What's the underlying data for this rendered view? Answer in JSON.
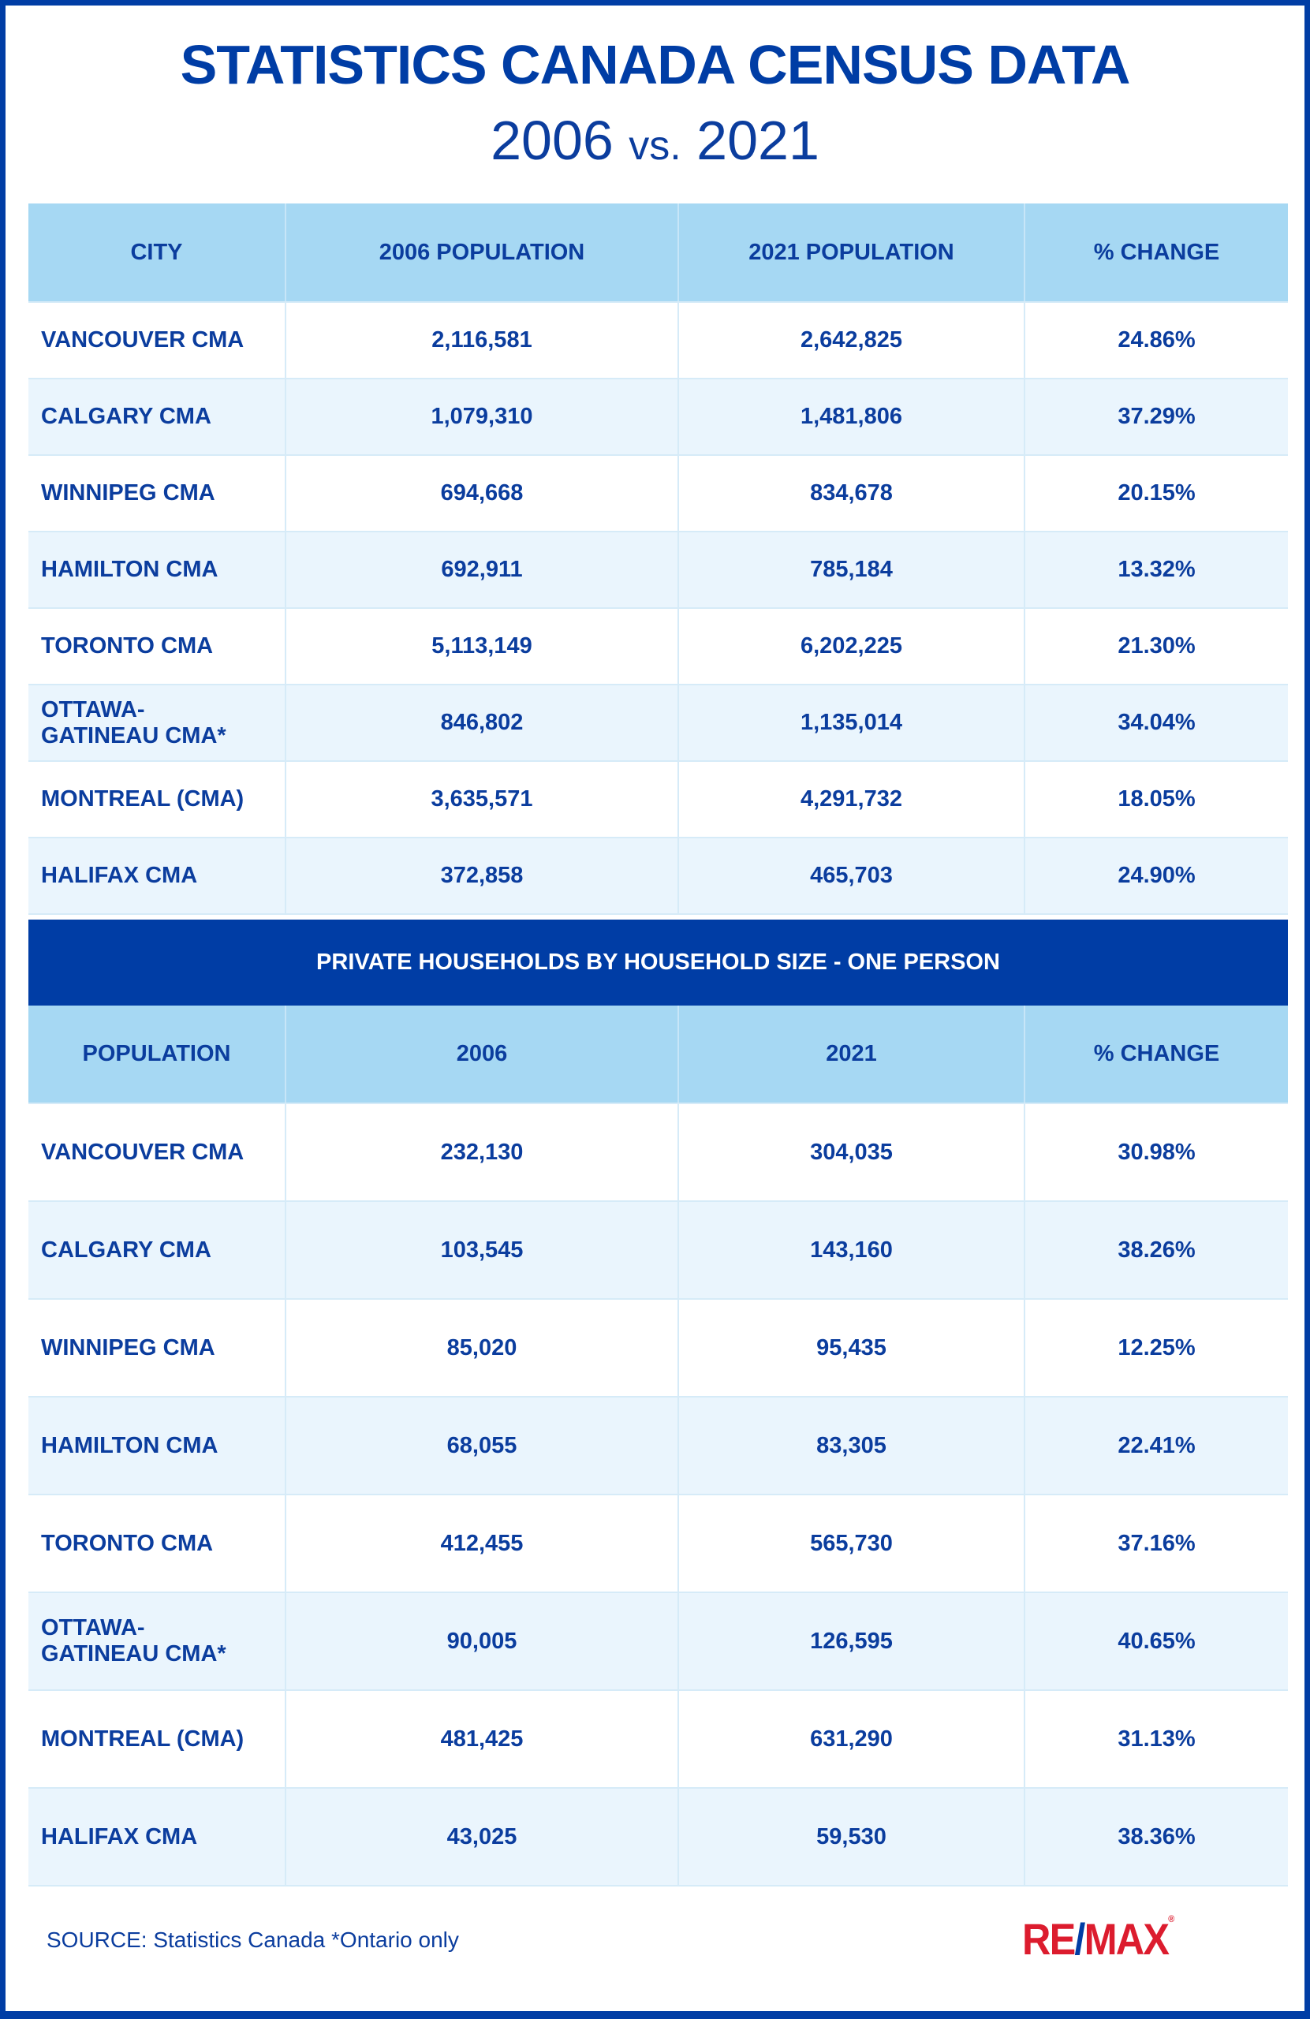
{
  "header": {
    "title": "STATISTICS CANADA CENSUS DATA",
    "year_a": "2006",
    "vs": "vs.",
    "year_b": "2021"
  },
  "population_table": {
    "columns": [
      "CITY",
      "2006 POPULATION",
      "2021 POPULATION",
      "% CHANGE"
    ],
    "rows": [
      [
        "VANCOUVER CMA",
        "2,116,581",
        "2,642,825",
        "24.86%"
      ],
      [
        "CALGARY CMA",
        "1,079,310",
        "1,481,806",
        "37.29%"
      ],
      [
        "WINNIPEG CMA",
        "694,668",
        "834,678",
        "20.15%"
      ],
      [
        "HAMILTON CMA",
        "692,911",
        "785,184",
        "13.32%"
      ],
      [
        "TORONTO CMA",
        "5,113,149",
        "6,202,225",
        "21.30%"
      ],
      [
        "OTTAWA-\nGATINEAU CMA*",
        "846,802",
        "1,135,014",
        "34.04%"
      ],
      [
        "MONTREAL (CMA)",
        "3,635,571",
        "4,291,732",
        "18.05%"
      ],
      [
        "HALIFAX CMA",
        "372,858",
        "465,703",
        "24.90%"
      ]
    ]
  },
  "households_table": {
    "banner": "PRIVATE HOUSEHOLDS BY HOUSEHOLD SIZE - ONE PERSON",
    "columns": [
      "POPULATION",
      "2006",
      "2021",
      "% CHANGE"
    ],
    "rows": [
      [
        "VANCOUVER CMA",
        "232,130",
        "304,035",
        "30.98%"
      ],
      [
        "CALGARY CMA",
        "103,545",
        "143,160",
        "38.26%"
      ],
      [
        "WINNIPEG CMA",
        "85,020",
        "95,435",
        "12.25%"
      ],
      [
        "HAMILTON CMA",
        "68,055",
        "83,305",
        "22.41%"
      ],
      [
        "TORONTO CMA",
        "412,455",
        "565,730",
        "37.16%"
      ],
      [
        "OTTAWA-\nGATINEAU CMA*",
        "90,005",
        "126,595",
        "40.65%"
      ],
      [
        "MONTREAL (CMA)",
        "481,425",
        "631,290",
        "31.13%"
      ],
      [
        "HALIFAX CMA",
        "43,025",
        "59,530",
        "38.36%"
      ]
    ]
  },
  "footer": {
    "source": "SOURCE: Statistics Canada *Ontario only",
    "logo": {
      "re": "RE",
      "slash": "/",
      "max": "MAX",
      "reg": "®"
    }
  },
  "colors": {
    "brand_blue": "#003da5",
    "header_bg": "#a6d8f3",
    "alt_row": "#eaf5fd",
    "logo_red": "#dc1c2e"
  }
}
